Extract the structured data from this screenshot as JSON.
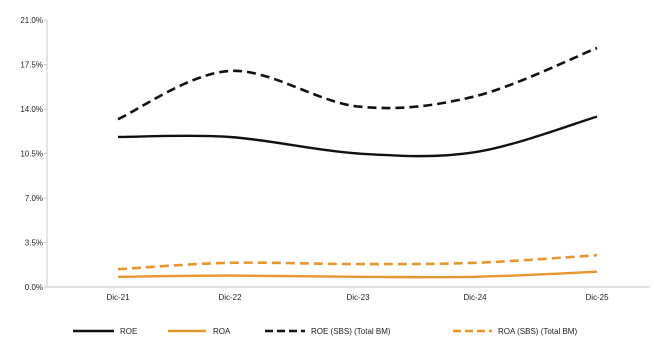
{
  "chart_data": {
    "type": "line",
    "title": "",
    "xlabel": "",
    "ylabel": "",
    "categories": [
      "Dic-21",
      "Dic-22",
      "Dic-23",
      "Dic-24",
      "Dic-25"
    ],
    "yticks": [
      "0.0%",
      "3.5%",
      "7.0%",
      "10.5%",
      "14.0%",
      "17.5%",
      "21.0%"
    ],
    "ylim": [
      0,
      21
    ],
    "grid": false,
    "legend_position": "bottom",
    "series": [
      {
        "name": "ROE",
        "values": [
          11.8,
          11.8,
          10.5,
          10.6,
          13.4
        ],
        "color": "#111111",
        "dash": "solid"
      },
      {
        "name": "ROA",
        "values": [
          0.8,
          0.9,
          0.8,
          0.8,
          1.2
        ],
        "color": "#E8952E",
        "dash": "solid"
      },
      {
        "name": "ROE (SBS) (Total BM)",
        "values": [
          13.2,
          17.0,
          14.2,
          15.0,
          18.8
        ],
        "color": "#111111",
        "dash": "dashed"
      },
      {
        "name": "ROA (SBS) (Total BM)",
        "values": [
          1.4,
          1.9,
          1.8,
          1.9,
          2.5
        ],
        "color": "#E8952E",
        "dash": "dashed"
      }
    ]
  }
}
